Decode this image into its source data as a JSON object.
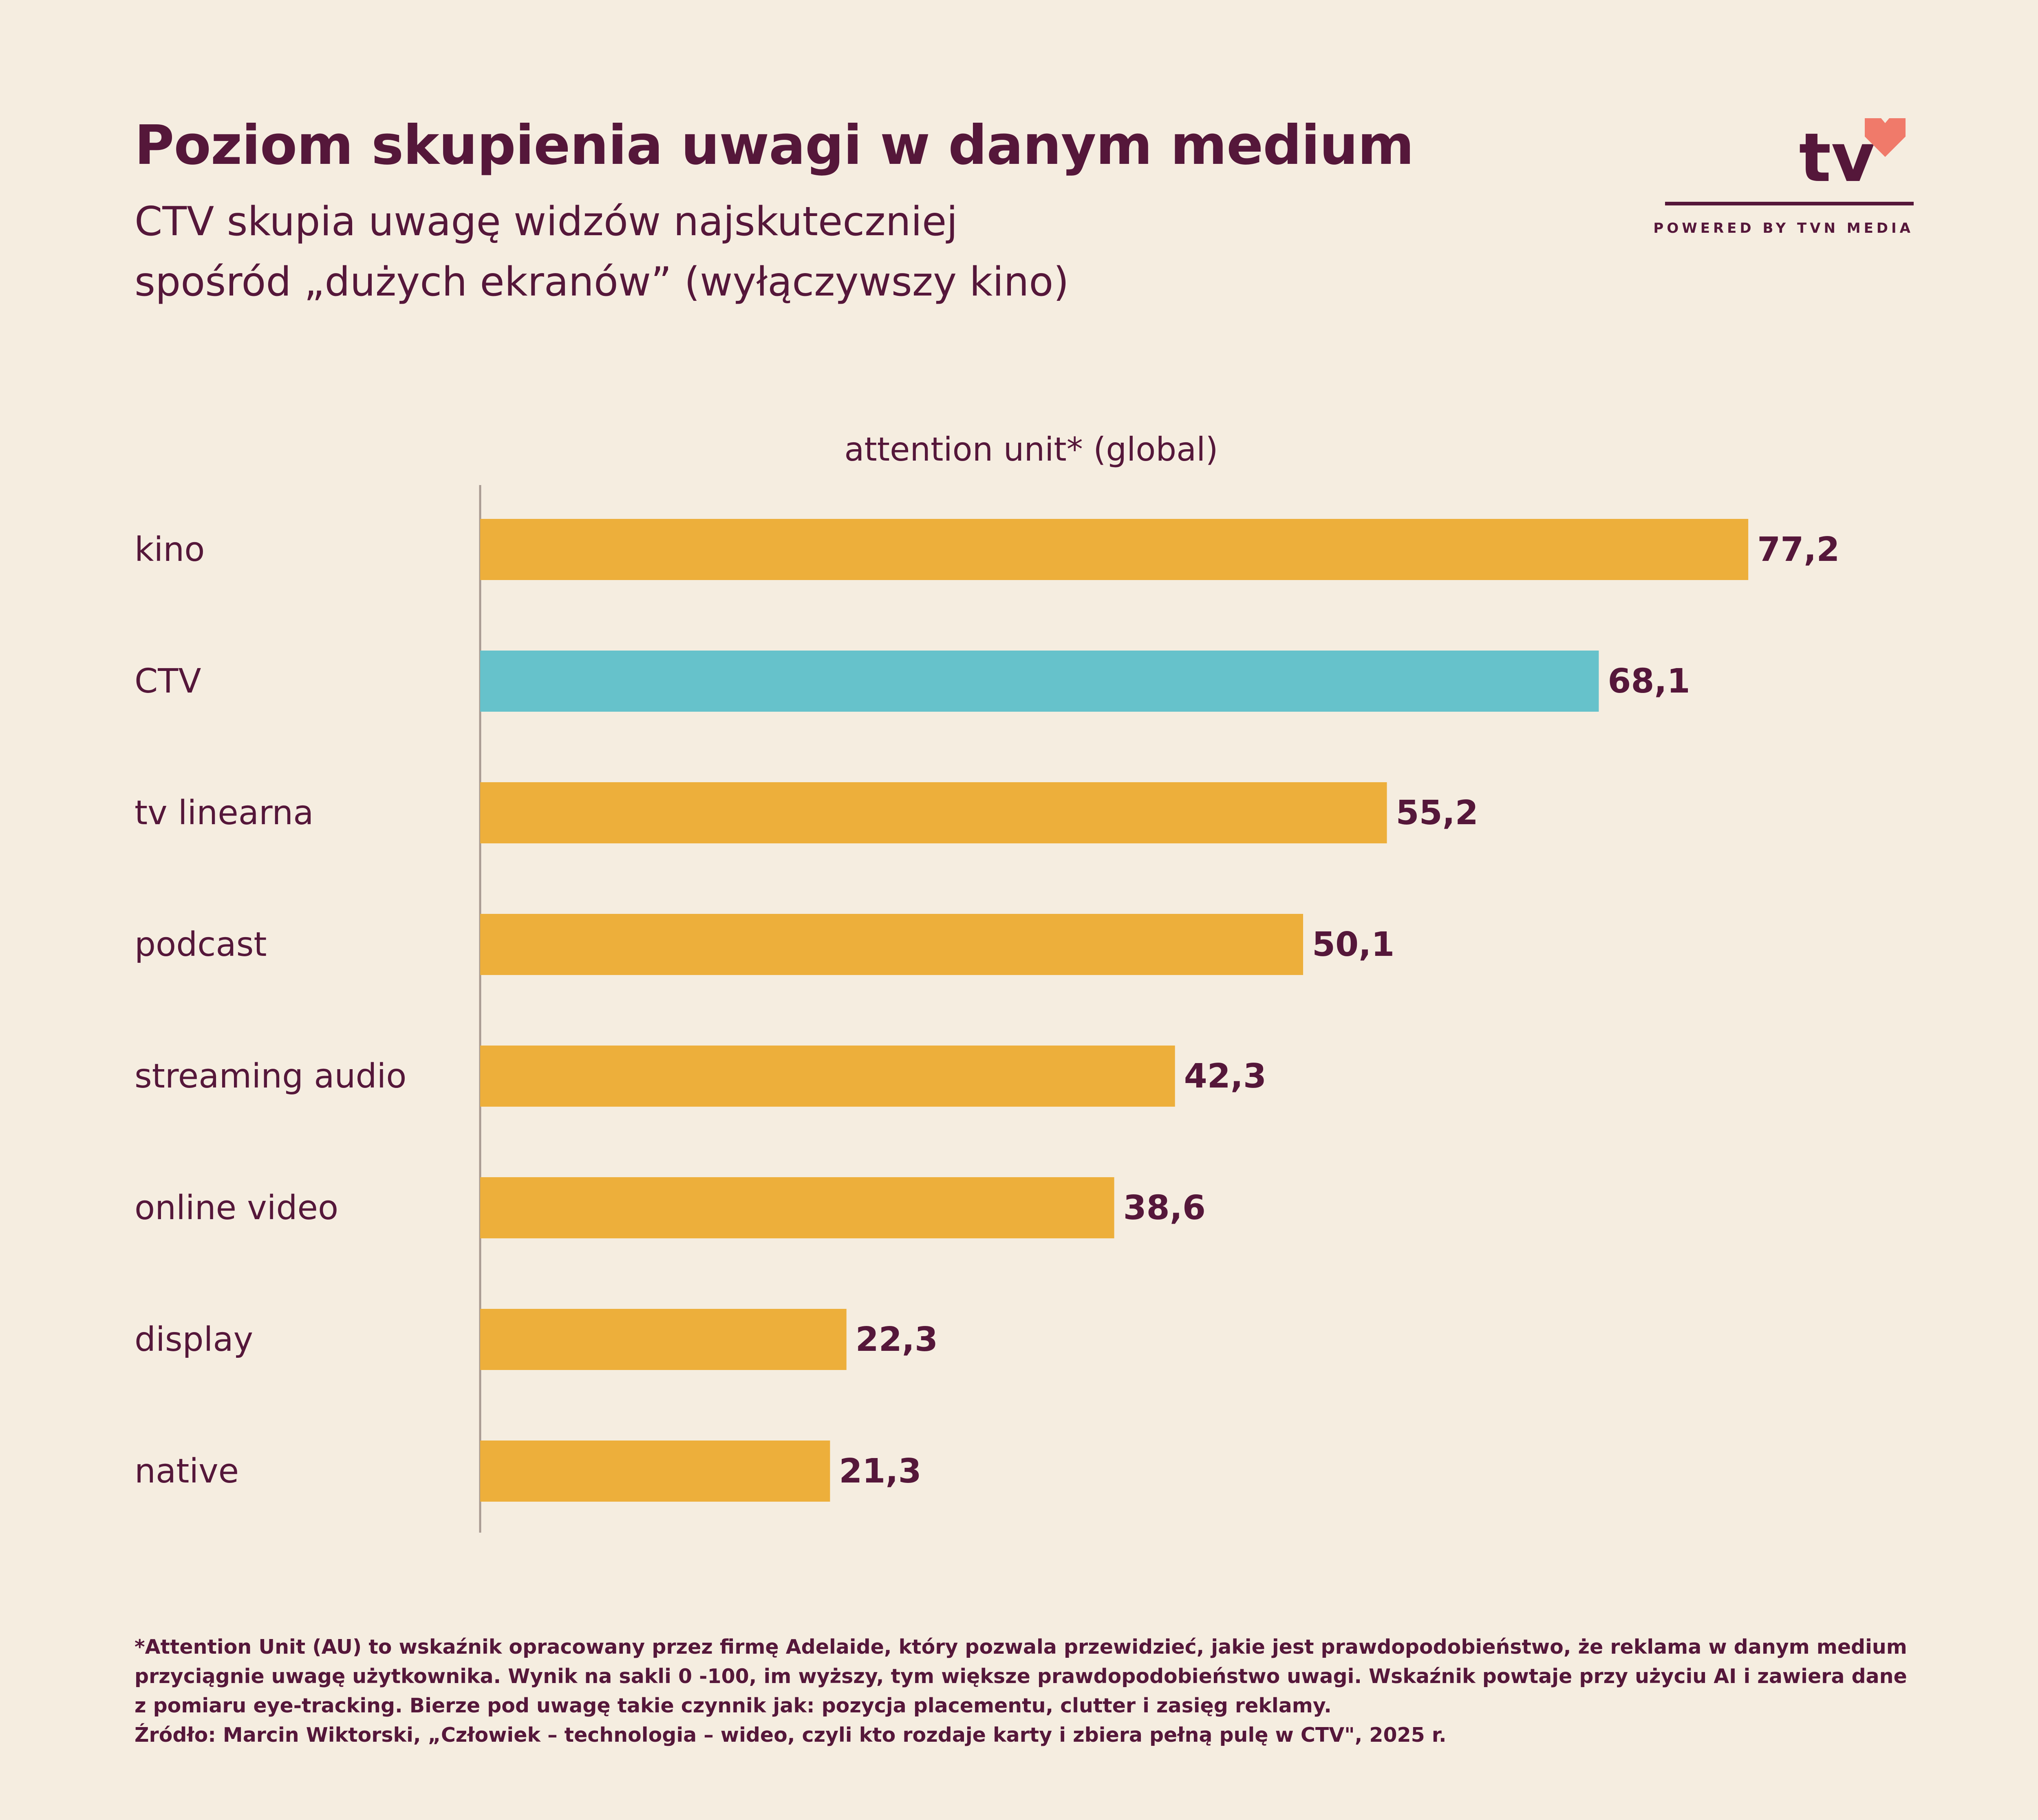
{
  "header": {
    "title": "Poziom skupienia uwagi w danym medium",
    "subtitle_line1": "CTV skupia uwagę widzów najskuteczniej",
    "subtitle_line2": "spośród „dużych ekranów” (wyłączywszy kino)"
  },
  "logo": {
    "wordmark": "tv",
    "tagline": "POWERED BY TVN MEDIA",
    "heart_color": "#f07a6a"
  },
  "chart_data": {
    "type": "bar",
    "orientation": "horizontal",
    "title": "attention unit* (global)",
    "categories": [
      "kino",
      "CTV",
      "tv linearna",
      "podcast",
      "streaming audio",
      "online video",
      "display",
      "native"
    ],
    "values": [
      77.2,
      68.1,
      55.2,
      50.1,
      42.3,
      38.6,
      22.3,
      21.3
    ],
    "value_labels": [
      "77,2",
      "68,1",
      "55,2",
      "50,1",
      "42,3",
      "38,6",
      "22,3",
      "21,3"
    ],
    "highlight_category": "CTV",
    "colors": {
      "default": "#edaf3b",
      "highlight": "#66c2cb"
    },
    "grid": false,
    "legend": "none"
  },
  "footnote": {
    "line1": "*Attention Unit (AU) to wskaźnik opracowany przez firmę Adelaide, który pozwala przewidzieć, jakie jest prawdopodobieństwo, że reklama w danym medium",
    "line2": "przyciągnie uwagę użytkownika. Wynik na sakli 0 -100, im wyższy, tym większe prawdopodobieństwo uwagi. Wskaźnik powtaje przy użyciu AI i zawiera dane",
    "line3": "z pomiaru eye-tracking. Bierze pod uwagę takie czynnik jak: pozycja placementu, clutter i zasięg reklamy.",
    "source": "Źródło: Marcin Wiktorski, „Człowiek – technologia – wideo, czyli kto rozdaje karty i zbiera pełną pulę w CTV\", 2025 r."
  }
}
